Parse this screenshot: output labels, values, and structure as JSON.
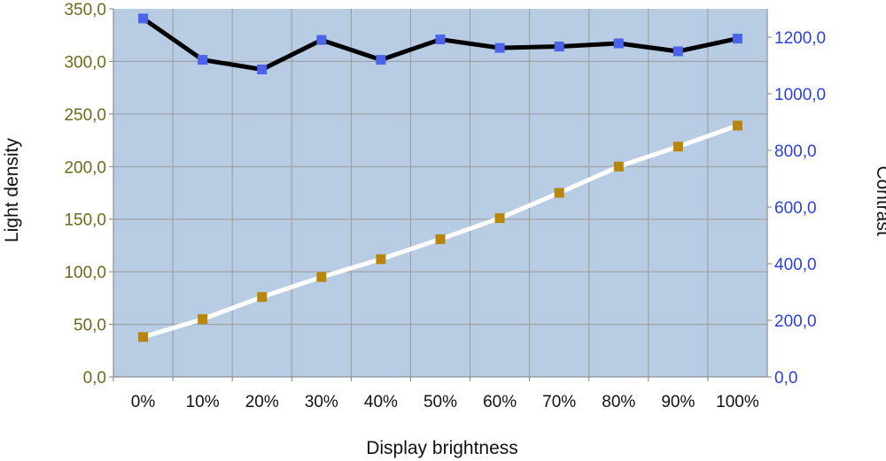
{
  "chart_data": {
    "type": "line",
    "title": "",
    "xlabel": "Display brightness",
    "ylabel": "Light density",
    "y2label": "Contrast",
    "categories": [
      "0%",
      "10%",
      "20%",
      "30%",
      "40%",
      "50%",
      "60%",
      "70%",
      "80%",
      "90%",
      "100%"
    ],
    "ylim": [
      0,
      350
    ],
    "y_ticks": [
      "0,0",
      "50,0",
      "100,0",
      "150,0",
      "200,0",
      "250,0",
      "300,0",
      "350,0"
    ],
    "y2lim": [
      0,
      1300
    ],
    "y2_ticks": [
      "0,0",
      "200,0",
      "400,0",
      "600,0",
      "800,0",
      "1000,0",
      "1200,0"
    ],
    "grid": true,
    "legend": "none",
    "colors": {
      "plot_background": "#b8cce4",
      "grid": "#9a9a9a",
      "left_axis_text": "#6e6a1c",
      "right_axis_text": "#2b3fe0"
    },
    "series": [
      {
        "axis": "left",
        "values": [
          38,
          55,
          76,
          95,
          112,
          131,
          151,
          175,
          200,
          219,
          239
        ],
        "line_color": "#ffffff",
        "marker_color": "#b8860b"
      },
      {
        "axis": "right",
        "values": [
          1266,
          1120,
          1086,
          1190,
          1120,
          1192,
          1162,
          1167,
          1178,
          1150,
          1195
        ],
        "line_color": "#000000",
        "marker_color": "#4a63e8"
      }
    ]
  }
}
